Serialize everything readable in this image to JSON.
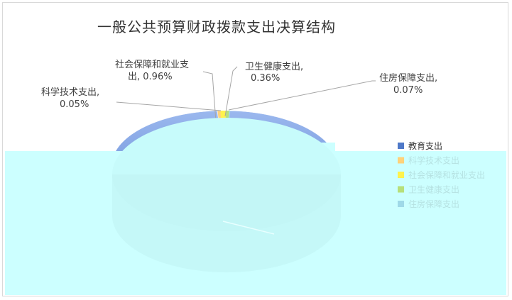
{
  "chart_data": {
    "type": "pie",
    "title": "一般公共预算财政拨款支出决算结构",
    "categories": [
      "教育支出",
      "社会保障和就业支出",
      "卫生健康支出",
      "住房保障支出",
      "科学技术支出"
    ],
    "values": [
      98.56,
      0.96,
      0.36,
      0.07,
      0.05
    ],
    "data_labels": [
      "",
      "社会保障和就业支出, 0.96%",
      "卫生健康支出, 0.36%",
      "住房保障支出, 0.07%",
      "科学技术支出, 0.05%"
    ],
    "legend": [
      "教育支出",
      "科学技术支出",
      "社会保障和就业支出",
      "卫生健康支出",
      "住房保障支出"
    ],
    "legend_position": "right",
    "style": "3d",
    "colors": {
      "教育支出": "#7EA3E4",
      "科学技术支出": "#FFD27A",
      "社会保障和就业支出": "#FFF24D",
      "卫生健康支出": "#B7E07A",
      "住房保障支出": "#9FD9E8",
      "overlay": "#CCFFFF"
    }
  }
}
